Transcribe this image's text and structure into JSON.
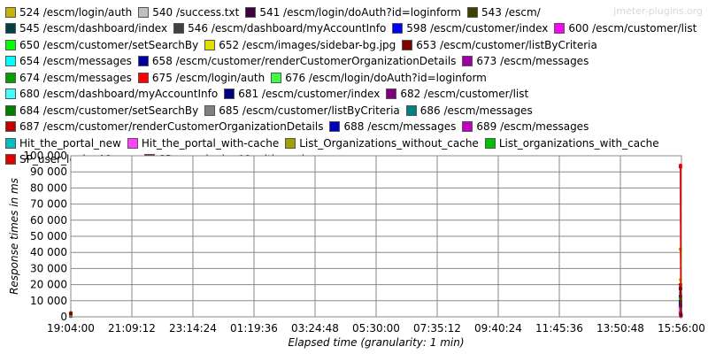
{
  "chart_data": {
    "type": "line",
    "watermark": "jmeter-plugins.org",
    "y_label": "Response times in ms",
    "x_label": "Elapsed time (granularity: 1 min)",
    "grid": true,
    "x": [
      0,
      1249,
      1250,
      1251
    ],
    "xlim": [
      0,
      1252
    ],
    "xticks": [
      {
        "value": 0,
        "label": "19:04:00"
      },
      {
        "value": 125.2,
        "label": "21:09:12"
      },
      {
        "value": 250.4,
        "label": "23:14:24"
      },
      {
        "value": 375.6,
        "label": "01:19:36"
      },
      {
        "value": 500.8,
        "label": "03:24:48"
      },
      {
        "value": 626,
        "label": "05:30:00"
      },
      {
        "value": 751.2,
        "label": "07:35:12"
      },
      {
        "value": 876.4,
        "label": "09:40:24"
      },
      {
        "value": 1001.6,
        "label": "11:45:36"
      },
      {
        "value": 1126.8,
        "label": "13:50:48"
      },
      {
        "value": 1252,
        "label": "15:56:00"
      }
    ],
    "ylim": [
      0,
      100000
    ],
    "yticks": [
      0,
      {
        "value": 10000,
        "label": "10 000"
      },
      {
        "value": 20000,
        "label": "20 000"
      },
      {
        "value": 30000,
        "label": "30 000"
      },
      {
        "value": 40000,
        "label": "40 000"
      },
      {
        "value": 50000,
        "label": "50 000"
      },
      {
        "value": 60000,
        "label": "60 000"
      },
      {
        "value": 70000,
        "label": "70 000"
      },
      {
        "value": 80000,
        "label": "80 000"
      },
      {
        "value": 90000,
        "label": "90 000"
      },
      {
        "value": 100000,
        "label": "100 000"
      }
    ],
    "series": [
      {
        "name": "524 /escm/login/auth",
        "color": "#c8b400",
        "values": [
          1500,
          null,
          23000,
          1000
        ]
      },
      {
        "name": "540 /success.txt",
        "color": "#c0c0c0",
        "values": [
          300,
          null,
          600,
          300
        ]
      },
      {
        "name": "541 /escm/login/doAuth?id=loginform",
        "color": "#400040",
        "values": [
          2000,
          null,
          13000,
          1500
        ]
      },
      {
        "name": "543 /escm/",
        "color": "#404000",
        "values": [
          800,
          null,
          4000,
          800
        ]
      },
      {
        "name": "545 /escm/dashboard/index",
        "color": "#004040",
        "values": [
          1200,
          null,
          9000,
          1200
        ]
      },
      {
        "name": "546 /escm/dashboard/myAccountInfo",
        "color": "#404040",
        "values": [
          1000,
          null,
          12000,
          900
        ]
      },
      {
        "name": "598 /escm/customer/index",
        "color": "#0000ff",
        "values": [
          900,
          null,
          8000,
          700
        ]
      },
      {
        "name": "600 /escm/customer/list",
        "color": "#ff00ff",
        "values": [
          1100,
          null,
          6000,
          800
        ]
      },
      {
        "name": "650 /escm/customer/setSearchBy",
        "color": "#00ff00",
        "values": [
          700,
          null,
          3000,
          600
        ]
      },
      {
        "name": "652 /escm/images/sidebar-bg.jpg",
        "color": "#e0e000",
        "values": [
          400,
          null,
          2000,
          400
        ]
      },
      {
        "name": "653 /escm/customer/listByCriteria",
        "color": "#800000",
        "values": [
          1300,
          null,
          17000,
          1100
        ]
      },
      {
        "name": "654 /escm/messages",
        "color": "#00ffff",
        "values": [
          600,
          null,
          2500,
          500
        ]
      },
      {
        "name": "658 /escm/customer/renderCustomerOrganizationDetails",
        "color": "#0000a0",
        "values": [
          1400,
          null,
          7000,
          1000
        ]
      },
      {
        "name": "673 /escm/messages",
        "color": "#a000a0",
        "values": [
          600,
          null,
          5000,
          500
        ]
      },
      {
        "name": "674 /escm/messages",
        "color": "#00a000",
        "values": [
          500,
          null,
          2000,
          400
        ]
      },
      {
        "name": "675 /escm/login/auth",
        "color": "#ff0000",
        "values": [
          2500,
          null,
          94000,
          1000
        ]
      },
      {
        "name": "676 /escm/login/doAuth?id=loginform",
        "color": "#40ff40",
        "values": [
          1800,
          null,
          3500,
          1200
        ]
      },
      {
        "name": "680 /escm/dashboard/myAccountInfo",
        "color": "#40ffff",
        "values": [
          900,
          null,
          4500,
          700
        ]
      },
      {
        "name": "681 /escm/customer/index",
        "color": "#000080",
        "values": [
          800,
          null,
          10000,
          700
        ]
      },
      {
        "name": "682 /escm/customer/list",
        "color": "#800080",
        "values": [
          1000,
          null,
          6500,
          800
        ]
      },
      {
        "name": "684 /escm/customer/setSearchBy",
        "color": "#008000",
        "values": [
          600,
          null,
          2800,
          500
        ]
      },
      {
        "name": "685 /escm/customer/listByCriteria",
        "color": "#808080",
        "values": [
          1200,
          null,
          15000,
          1000
        ]
      },
      {
        "name": "686 /escm/messages",
        "color": "#008080",
        "values": [
          500,
          null,
          2200,
          400
        ]
      },
      {
        "name": "687 /escm/customer/renderCustomerOrganizationDetails",
        "color": "#c00000",
        "values": [
          1300,
          null,
          20000,
          1000
        ]
      },
      {
        "name": "688 /escm/messages",
        "color": "#0000c0",
        "values": [
          500,
          null,
          2400,
          400
        ]
      },
      {
        "name": "689 /escm/messages",
        "color": "#c000c0",
        "values": [
          500,
          null,
          2600,
          400
        ]
      },
      {
        "name": "Hit_the_portal_new",
        "color": "#00c0c0",
        "values": [
          1000,
          null,
          5000,
          800
        ]
      },
      {
        "name": "Hit_the_portal_with-cache",
        "color": "#ff40ff",
        "values": [
          900,
          null,
          4200,
          700
        ]
      },
      {
        "name": "List_Organizations_without_cache",
        "color": "#a0a000",
        "values": [
          1500,
          null,
          42000,
          1200
        ]
      },
      {
        "name": "List_organizations_with_cache",
        "color": "#00c000",
        "values": [
          1200,
          null,
          11000,
          900
        ]
      },
      {
        "name": "SP_user_login_46_new",
        "color": "#e00000",
        "values": [
          2200,
          null,
          93000,
          1100
        ]
      },
      {
        "name": "SP_user_login_46_with_cache",
        "color": "#800000",
        "values": [
          2000,
          null,
          18000,
          1000
        ]
      }
    ]
  }
}
